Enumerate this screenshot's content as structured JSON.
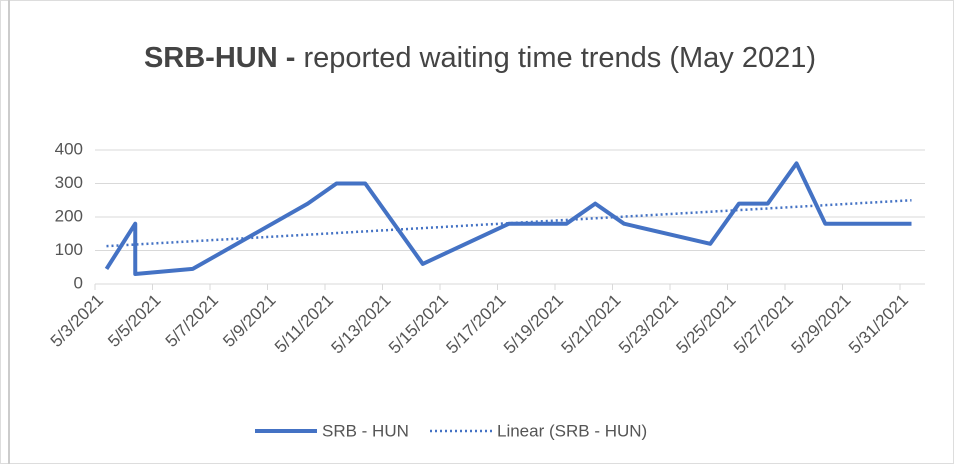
{
  "chart_data": {
    "type": "line",
    "title_bold": "SRB-HUN -",
    "title": "reported waiting time trends (May 2021)",
    "ylim": [
      0,
      400
    ],
    "yticks": [
      0,
      100,
      200,
      300,
      400
    ],
    "grid": true,
    "xlim": [
      "5/3/2021",
      "5/31/2021"
    ],
    "xticks": [
      "5/3/2021",
      "5/5/2021",
      "5/7/2021",
      "5/9/2021",
      "5/11/2021",
      "5/13/2021",
      "5/15/2021",
      "5/17/2021",
      "5/19/2021",
      "5/21/2021",
      "5/23/2021",
      "5/25/2021",
      "5/27/2021",
      "5/29/2021",
      "5/31/2021"
    ],
    "legend": "bottom",
    "series": [
      {
        "name": "SRB - HUN",
        "color": "#4472c4",
        "style": "solid",
        "x": [
          "5/3/2021",
          "5/4/2021",
          "5/4/2021",
          "5/6/2021",
          "5/10/2021",
          "5/11/2021",
          "5/12/2021",
          "5/14/2021",
          "5/17/2021",
          "5/19/2021",
          "5/20/2021",
          "5/21/2021",
          "5/24/2021",
          "5/25/2021",
          "5/26/2021",
          "5/27/2021",
          "5/28/2021",
          "5/31/2021"
        ],
        "values": [
          45,
          180,
          30,
          45,
          240,
          300,
          300,
          60,
          180,
          180,
          240,
          180,
          120,
          240,
          240,
          360,
          180,
          180
        ]
      },
      {
        "name": "Linear (SRB - HUN)",
        "color": "#4472c4",
        "style": "dotted",
        "x": [
          "5/3/2021",
          "5/31/2021"
        ],
        "values": [
          113,
          250
        ]
      }
    ]
  }
}
